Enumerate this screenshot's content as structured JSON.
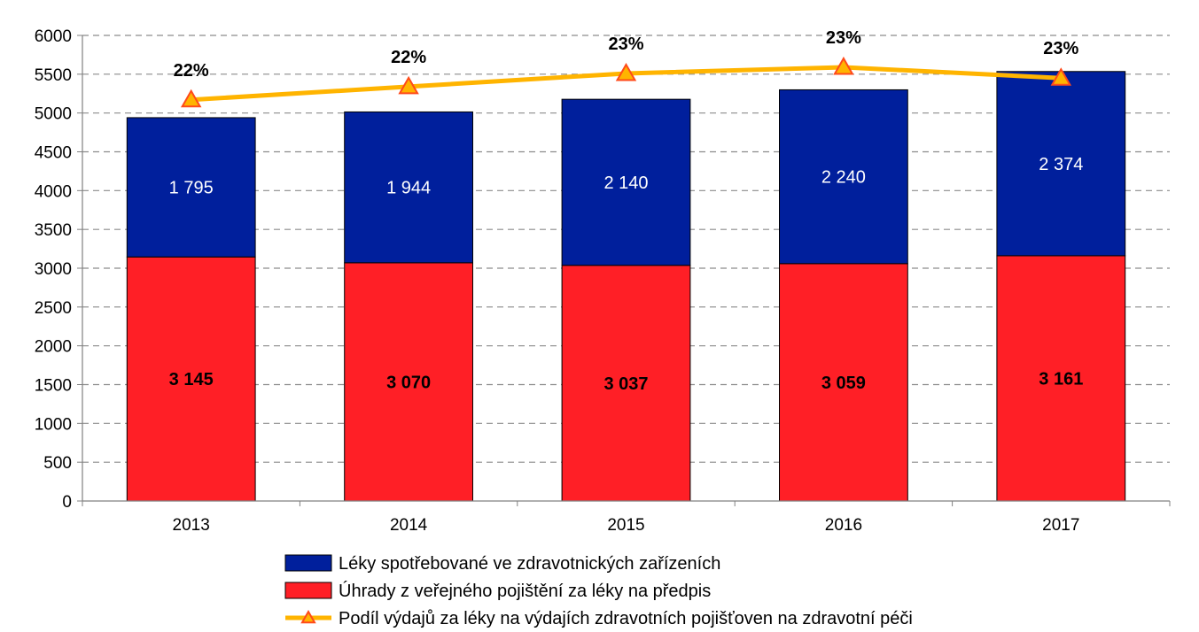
{
  "chart_data": {
    "type": "bar",
    "stacked": true,
    "categories": [
      "2013",
      "2014",
      "2015",
      "2016",
      "2017"
    ],
    "ylim": [
      0,
      6000
    ],
    "yticks": [
      0,
      500,
      1000,
      1500,
      2000,
      2500,
      3000,
      3500,
      4000,
      4500,
      5000,
      5500,
      6000
    ],
    "grid": true,
    "legend_position": "bottom",
    "series": [
      {
        "name": "Úhrady z veřejného pojištění za léky na předpis",
        "type": "bar",
        "color": "#ff1f26",
        "values": [
          3145,
          3070,
          3037,
          3059,
          3161
        ],
        "labels": [
          "3 145",
          "3 070",
          "3 037",
          "3 059",
          "3 161"
        ]
      },
      {
        "name": "Léky spotřebované ve zdravotnických zařízeních",
        "type": "bar",
        "color": "#001f9c",
        "values": [
          1795,
          1944,
          2140,
          2240,
          2374
        ],
        "labels": [
          "1 795",
          "1 944",
          "2 140",
          "2 240",
          "2 374"
        ]
      },
      {
        "name": "Podíl výdajů za léky na výdajích zdravotních pojišťoven na zdravotní péči",
        "type": "line",
        "color": "#ffb400",
        "marker_color": "#ff4a1a",
        "positions": [
          5170,
          5340,
          5510,
          5590,
          5450
        ],
        "labels": [
          "22%",
          "22%",
          "23%",
          "23%",
          "23%"
        ]
      }
    ]
  }
}
